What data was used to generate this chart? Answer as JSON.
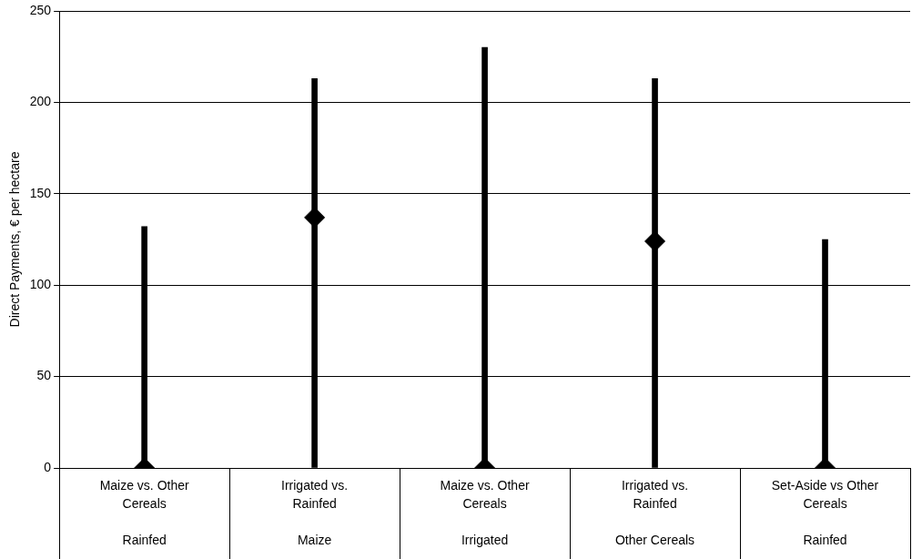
{
  "chart_data": {
    "type": "bar",
    "ylabel": "Direct Payments, € per hectare",
    "categories": [
      "Maize vs. Other Cereals\nRainfed",
      "Irrigated vs. Rainfed\nMaize",
      "Maize vs. Other Cereals\nIrrigated",
      "Irrigated vs. Rainfed\nOther Cereals",
      "Set-Aside vs Other Cereals\nRainfed"
    ],
    "series": [
      {
        "color": "#000000",
        "values": [
          132,
          213,
          230,
          213,
          125
        ]
      },
      {
        "type": "scatter",
        "color": "#000000",
        "values": [
          0,
          137,
          0,
          124,
          0
        ]
      }
    ],
    "marker": "diamond",
    "ylim": [
      0,
      250
    ],
    "yticks": [
      0,
      50,
      100,
      150,
      200,
      250
    ],
    "grid": "y",
    "legend": false
  }
}
